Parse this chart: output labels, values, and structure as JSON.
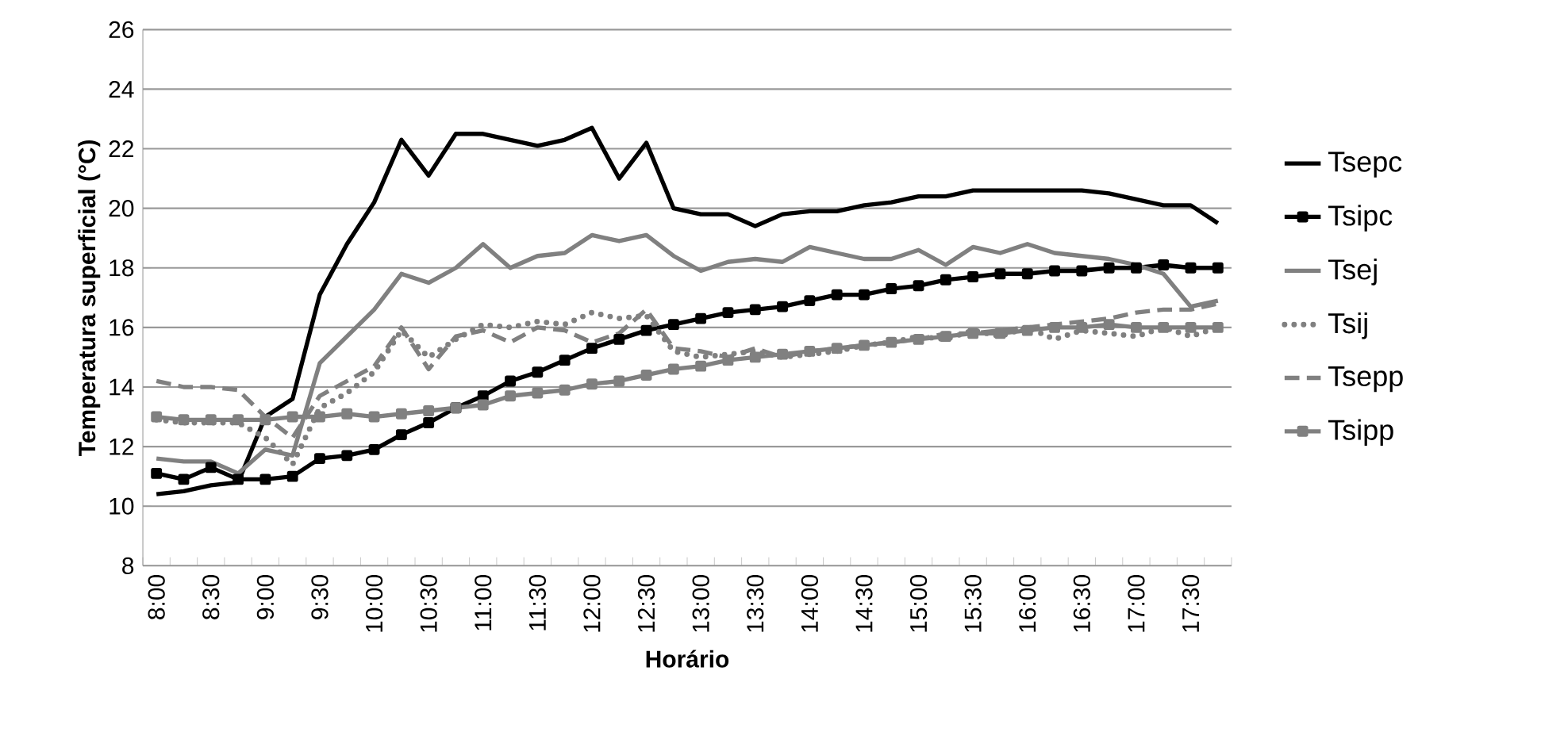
{
  "chart_data": {
    "type": "line",
    "xlabel": "Horário",
    "ylabel": "Temperatura superficial (°C)",
    "categories": [
      "8:00",
      null,
      "8:30",
      null,
      "9:00",
      null,
      "9:30",
      null,
      "10:00",
      null,
      "10:30",
      null,
      "11:00",
      null,
      "11:30",
      null,
      "12:00",
      null,
      "12:30",
      null,
      "13:00",
      null,
      "13:30",
      null,
      "14:00",
      null,
      "14:30",
      null,
      "15:00",
      null,
      "15:30",
      null,
      "16:00",
      null,
      "16:30",
      null,
      "17:00",
      null,
      "17:30",
      null
    ],
    "ylim": [
      8,
      26
    ],
    "yticks": [
      8,
      10,
      12,
      14,
      16,
      18,
      20,
      22,
      24,
      26
    ],
    "grid": "y",
    "legend": "right",
    "series": [
      {
        "name": "Tsepc",
        "color": "#000000",
        "marker": "none",
        "line_style": "solid",
        "values": [
          10.4,
          10.5,
          10.7,
          10.8,
          13.0,
          13.6,
          17.1,
          18.8,
          20.2,
          22.3,
          21.1,
          22.5,
          22.5,
          22.3,
          22.1,
          22.3,
          22.7,
          21.0,
          22.2,
          20.0,
          19.8,
          19.8,
          19.4,
          19.8,
          19.9,
          19.9,
          20.1,
          20.2,
          20.4,
          20.4,
          20.6,
          20.6,
          20.6,
          20.6,
          20.6,
          20.5,
          20.3,
          20.1,
          20.1,
          19.5
        ]
      },
      {
        "name": "Tsipc",
        "color": "#000000",
        "marker": "square",
        "line_style": "solid",
        "values": [
          11.1,
          10.9,
          11.3,
          10.9,
          10.9,
          11.0,
          11.6,
          11.7,
          11.9,
          12.4,
          12.8,
          13.3,
          13.7,
          14.2,
          14.5,
          14.9,
          15.3,
          15.6,
          15.9,
          16.1,
          16.3,
          16.5,
          16.6,
          16.7,
          16.9,
          17.1,
          17.1,
          17.3,
          17.4,
          17.6,
          17.7,
          17.8,
          17.8,
          17.9,
          17.9,
          18.0,
          18.0,
          18.1,
          18.0,
          18.0
        ]
      },
      {
        "name": "Tsej",
        "color": "#808080",
        "marker": "none",
        "line_style": "solid",
        "values": [
          11.6,
          11.5,
          11.5,
          11.1,
          11.9,
          11.7,
          14.8,
          15.7,
          16.6,
          17.8,
          17.5,
          18.0,
          18.8,
          18.0,
          18.4,
          18.5,
          19.1,
          18.9,
          19.1,
          18.4,
          17.9,
          18.2,
          18.3,
          18.2,
          18.7,
          18.5,
          18.3,
          18.3,
          18.6,
          18.1,
          18.7,
          18.5,
          18.8,
          18.5,
          18.4,
          18.3,
          18.1,
          17.8,
          16.7,
          16.9
        ]
      },
      {
        "name": "Tsij",
        "color": "#808080",
        "marker": "none",
        "line_style": "dotted",
        "values": [
          12.9,
          12.8,
          12.8,
          12.8,
          12.3,
          11.4,
          13.3,
          13.8,
          14.5,
          15.9,
          15.0,
          15.6,
          16.1,
          16.0,
          16.2,
          16.1,
          16.5,
          16.3,
          16.4,
          15.2,
          15.0,
          15.1,
          15.2,
          15.0,
          15.1,
          15.2,
          15.4,
          15.5,
          15.7,
          15.6,
          15.9,
          15.7,
          16.0,
          15.6,
          15.9,
          15.8,
          15.7,
          16.0,
          15.7,
          16.0
        ]
      },
      {
        "name": "Tsepp",
        "color": "#808080",
        "marker": "none",
        "line_style": "dashed",
        "values": [
          14.2,
          14.0,
          14.0,
          13.9,
          13.0,
          12.3,
          13.7,
          14.2,
          14.7,
          16.0,
          14.6,
          15.7,
          15.9,
          15.5,
          16.0,
          15.9,
          15.5,
          15.8,
          16.6,
          15.3,
          15.2,
          15.0,
          15.3,
          15.0,
          15.2,
          15.3,
          15.4,
          15.5,
          15.6,
          15.8,
          15.8,
          15.9,
          16.0,
          16.1,
          16.2,
          16.3,
          16.5,
          16.6,
          16.6,
          16.8
        ]
      },
      {
        "name": "Tsipp",
        "color": "#808080",
        "marker": "square",
        "line_style": "solid",
        "values": [
          13.0,
          12.9,
          12.9,
          12.9,
          12.9,
          13.0,
          13.0,
          13.1,
          13.0,
          13.1,
          13.2,
          13.3,
          13.4,
          13.7,
          13.8,
          13.9,
          14.1,
          14.2,
          14.4,
          14.6,
          14.7,
          14.9,
          15.0,
          15.1,
          15.2,
          15.3,
          15.4,
          15.5,
          15.6,
          15.7,
          15.8,
          15.8,
          15.9,
          16.0,
          16.0,
          16.1,
          16.0,
          16.0,
          16.0,
          16.0
        ]
      }
    ]
  }
}
